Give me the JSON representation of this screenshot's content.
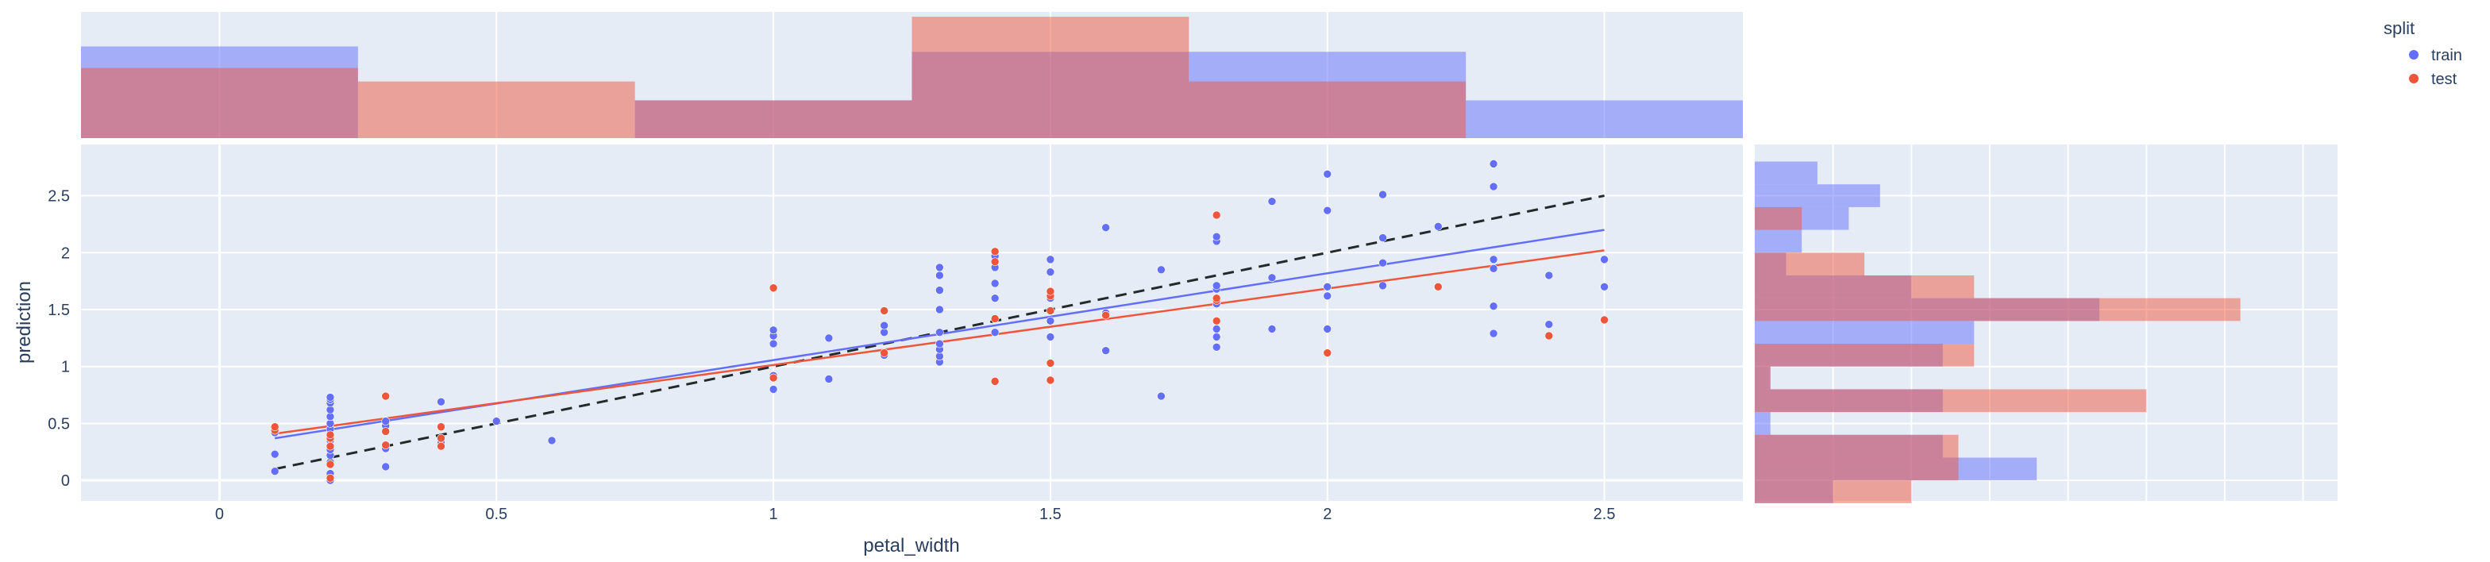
{
  "chart_data": {
    "type": "scatter",
    "title": "",
    "xlabel": "petal_width",
    "ylabel": "prediction",
    "xlim": [
      -0.25,
      2.75
    ],
    "ylim": [
      -0.18,
      2.95
    ],
    "x_ticks": [
      0,
      0.5,
      1,
      1.5,
      2,
      2.5
    ],
    "x_tick_labels": [
      "0",
      "0.5",
      "1",
      "1.5",
      "2",
      "2.5"
    ],
    "y_ticks": [
      0,
      0.5,
      1,
      1.5,
      2,
      2.5
    ],
    "y_tick_labels": [
      "0",
      "0.5",
      "1",
      "1.5",
      "2",
      "2.5"
    ],
    "grid": true,
    "legend": {
      "title": "split",
      "placement": "top-right"
    },
    "colors": {
      "train": "#636efa",
      "test": "#ef553b",
      "plot_bg": "#e5ecf6",
      "identity_line": "#222a2a"
    },
    "identity_line": {
      "x": [
        0.1,
        2.5
      ],
      "y": [
        0.1,
        2.5
      ],
      "dash": "dash"
    },
    "series": [
      {
        "name": "train",
        "color": "#636efa",
        "x": [
          0.1,
          0.1,
          0.1,
          0.2,
          0.2,
          0.2,
          0.2,
          0.2,
          0.2,
          0.2,
          0.2,
          0.2,
          0.2,
          0.2,
          0.2,
          0.2,
          0.2,
          0.2,
          0.3,
          0.3,
          0.3,
          0.3,
          0.4,
          0.4,
          0.4,
          0.5,
          0.6,
          1.0,
          1.0,
          1.0,
          1.0,
          1.0,
          1.1,
          1.1,
          1.2,
          1.2,
          1.2,
          1.3,
          1.3,
          1.3,
          1.3,
          1.3,
          1.3,
          1.3,
          1.3,
          1.3,
          1.4,
          1.4,
          1.4,
          1.4,
          1.4,
          1.5,
          1.5,
          1.5,
          1.5,
          1.5,
          1.6,
          1.6,
          1.6,
          1.7,
          1.7,
          1.8,
          1.8,
          1.8,
          1.8,
          1.8,
          1.8,
          1.8,
          1.8,
          1.9,
          1.9,
          1.9,
          2.0,
          2.0,
          2.0,
          2.0,
          2.0,
          2.1,
          2.1,
          2.1,
          2.1,
          2.2,
          2.3,
          2.3,
          2.3,
          2.3,
          2.3,
          2.3,
          2.4,
          2.4,
          2.5,
          2.5
        ],
        "y": [
          0.08,
          0.23,
          0.42,
          0.0,
          0.06,
          0.16,
          0.22,
          0.27,
          0.31,
          0.35,
          0.4,
          0.45,
          0.5,
          0.56,
          0.62,
          0.68,
          0.71,
          0.73,
          0.12,
          0.28,
          0.48,
          0.52,
          0.33,
          0.47,
          0.69,
          0.52,
          0.35,
          0.8,
          0.92,
          1.2,
          1.27,
          1.32,
          0.89,
          1.25,
          1.1,
          1.3,
          1.36,
          1.04,
          1.09,
          1.15,
          1.2,
          1.3,
          1.5,
          1.67,
          1.8,
          1.87,
          1.3,
          1.6,
          1.73,
          1.87,
          1.97,
          1.26,
          1.4,
          1.6,
          1.83,
          1.94,
          1.14,
          1.47,
          2.22,
          0.74,
          1.85,
          1.17,
          1.26,
          1.33,
          1.55,
          1.68,
          1.71,
          2.1,
          2.14,
          1.33,
          1.78,
          2.45,
          1.33,
          1.62,
          1.7,
          2.37,
          2.69,
          1.71,
          1.91,
          2.13,
          2.51,
          2.23,
          1.29,
          1.53,
          1.86,
          1.94,
          2.58,
          2.78,
          1.37,
          1.8,
          1.7,
          1.94
        ]
      },
      {
        "name": "test",
        "color": "#ef553b",
        "x": [
          0.1,
          0.1,
          0.2,
          0.2,
          0.2,
          0.2,
          0.2,
          0.3,
          0.3,
          0.3,
          0.4,
          0.4,
          0.4,
          1.0,
          1.0,
          1.2,
          1.2,
          1.4,
          1.4,
          1.4,
          1.4,
          1.5,
          1.5,
          1.5,
          1.5,
          1.5,
          1.6,
          1.8,
          1.8,
          1.8,
          1.8,
          2.0,
          2.2,
          2.4,
          2.5
        ],
        "y": [
          0.44,
          0.47,
          0.02,
          0.14,
          0.3,
          0.37,
          0.4,
          0.31,
          0.43,
          0.74,
          0.3,
          0.37,
          0.47,
          0.9,
          1.69,
          1.12,
          1.49,
          0.87,
          1.42,
          1.92,
          2.01,
          0.88,
          1.03,
          1.49,
          1.62,
          1.66,
          1.45,
          1.4,
          1.58,
          1.6,
          2.33,
          1.12,
          1.7,
          1.27,
          1.41
        ]
      }
    ],
    "trendlines": [
      {
        "series": "train",
        "x": [
          0.1,
          2.5
        ],
        "y": [
          0.37,
          2.2
        ]
      },
      {
        "series": "test",
        "x": [
          0.1,
          2.5
        ],
        "y": [
          0.41,
          2.02
        ]
      }
    ],
    "marginal_x_histogram": {
      "bin_edges": [
        -0.25,
        0.25,
        0.75,
        1.25,
        1.75,
        2.25,
        2.75
      ],
      "train_share": [
        0.34,
        0.0,
        0.14,
        0.32,
        0.32,
        0.14
      ],
      "test_share": [
        0.26,
        0.21,
        0.14,
        0.45,
        0.21,
        0.0
      ]
    },
    "marginal_y_histogram": {
      "bin_edges": [
        -0.2,
        0.0,
        0.2,
        0.4,
        0.6,
        0.8,
        1.0,
        1.2,
        1.4,
        1.6,
        1.8,
        2.0,
        2.2,
        2.4,
        2.6,
        2.8
      ],
      "train_share": [
        0.05,
        0.18,
        0.12,
        0.01,
        0.12,
        0.01,
        0.12,
        0.14,
        0.22,
        0.1,
        0.02,
        0.03,
        0.06,
        0.08,
        0.04
      ],
      "test_share": [
        0.1,
        0.13,
        0.13,
        0.0,
        0.25,
        0.01,
        0.14,
        0.0,
        0.31,
        0.14,
        0.07,
        0.0,
        0.03,
        0.0,
        0.0
      ]
    }
  }
}
